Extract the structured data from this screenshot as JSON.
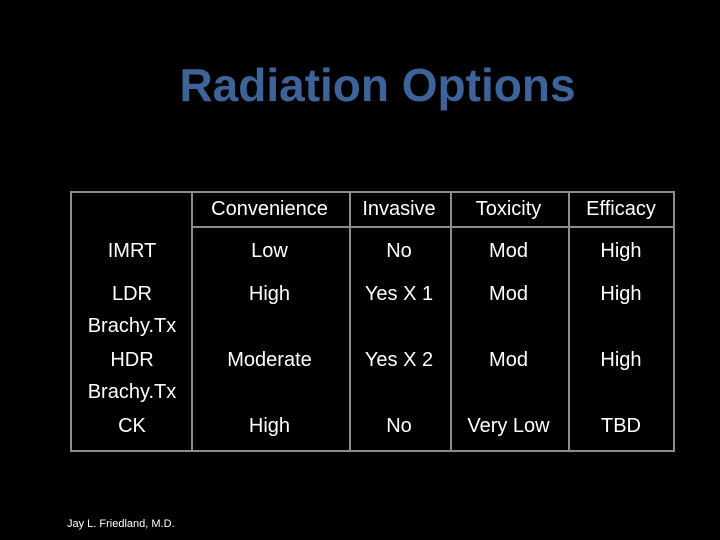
{
  "slide": {
    "title": "Radiation Options",
    "author": "Jay L. Friedland, M.D."
  },
  "table": {
    "headers": [
      "",
      "Convenience",
      "Invasive",
      "Toxicity",
      "Efficacy"
    ],
    "rows": [
      {
        "label": [
          "IMRT"
        ],
        "cells": [
          "Low",
          "No",
          "Mod",
          "High"
        ]
      },
      {
        "label": [
          "LDR",
          "Brachy.Tx"
        ],
        "cells": [
          "High",
          "Yes X 1",
          "Mod",
          "High"
        ]
      },
      {
        "label": [
          "HDR",
          "Brachy.Tx"
        ],
        "cells": [
          "Moderate",
          "Yes X 2",
          "Mod",
          "High"
        ]
      },
      {
        "label": [
          "CK"
        ],
        "cells": [
          "High",
          "No",
          "Very Low",
          "TBD"
        ]
      }
    ]
  },
  "colors": {
    "background": "#000000",
    "title": "#3d6399",
    "grid_line": "#8c8c8c",
    "text": "#ffffff"
  }
}
